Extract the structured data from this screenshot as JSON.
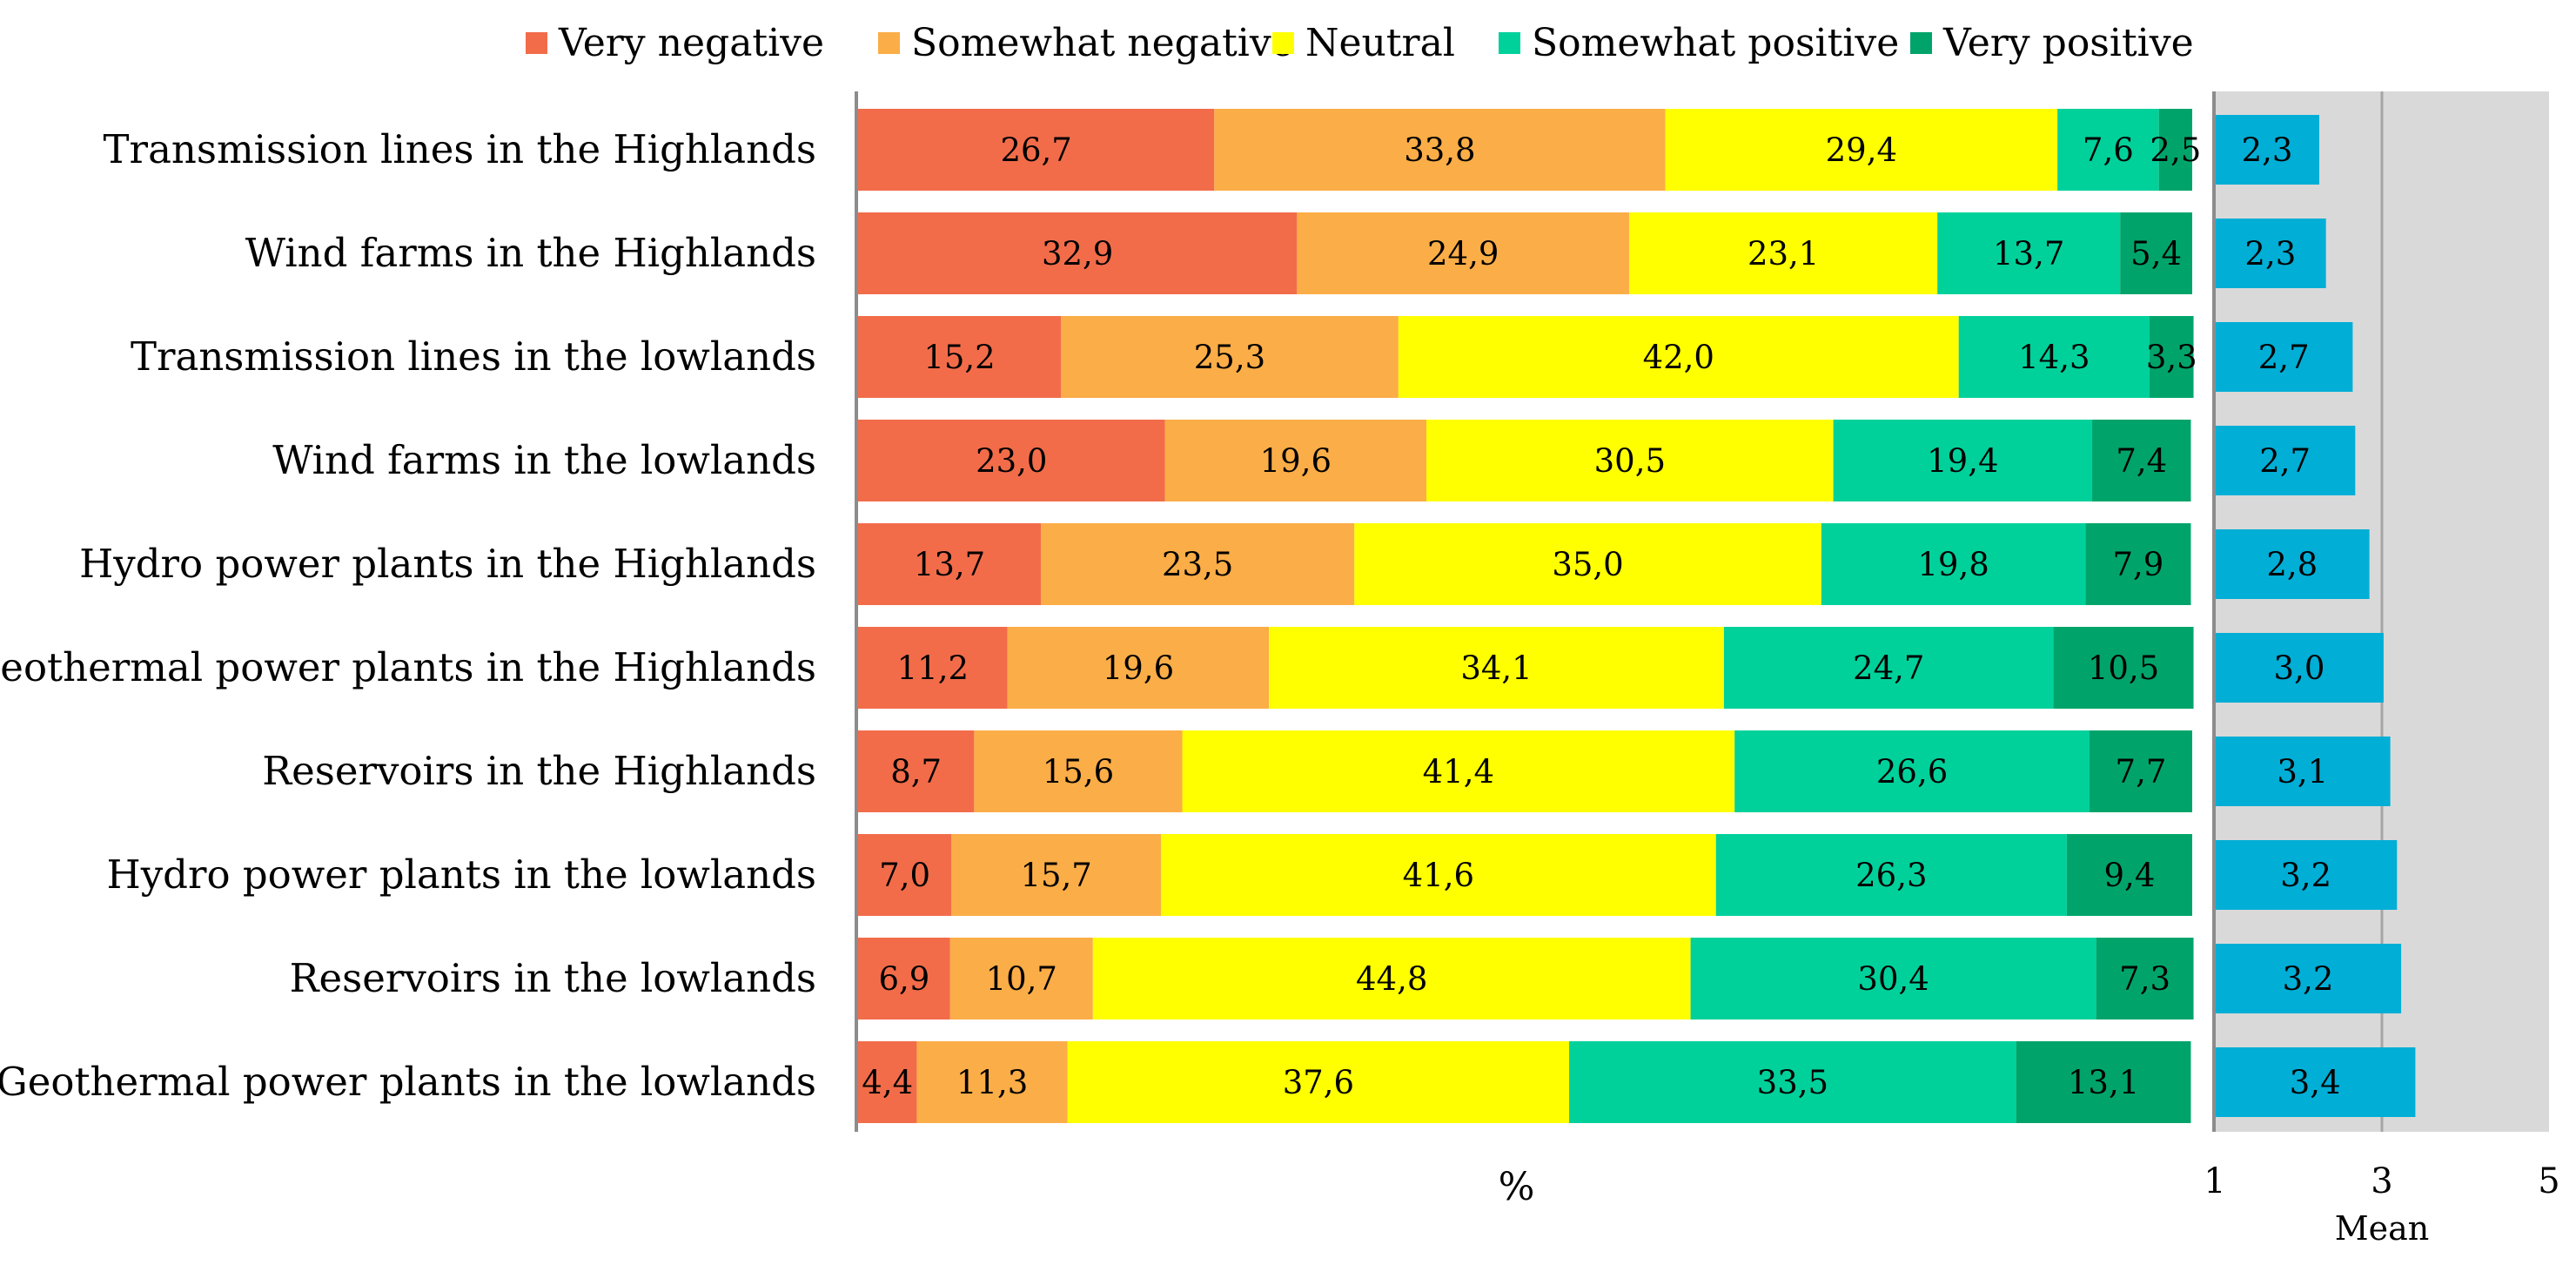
{
  "chart_data": [
    {
      "type": "bar",
      "orientation": "horizontal",
      "stacked": true,
      "xlabel": "%",
      "xlim": [
        0,
        100
      ],
      "categories": [
        "Transmission lines in the Highlands",
        "Wind farms in the Highlands",
        "Transmission lines in the lowlands",
        "Wind farms in the lowlands",
        "Hydro power plants in the Highlands",
        "Geothermal power plants in the Highlands",
        "Reservoirs in the Highlands",
        "Hydro power plants in the lowlands",
        "Reservoirs in the lowlands",
        "Geothermal power plants in the lowlands"
      ],
      "series": [
        {
          "name": "Very negative",
          "color": "#f26c4a",
          "values": [
            26.7,
            32.9,
            15.2,
            23.0,
            13.7,
            11.2,
            8.7,
            7.0,
            6.9,
            4.4
          ],
          "labels": [
            "26,7",
            "32,9",
            "15,2",
            "23,0",
            "13,7",
            "11,2",
            "8,7",
            "7,0",
            "6,9",
            "4,4"
          ]
        },
        {
          "name": "Somewhat negative",
          "color": "#fbad47",
          "values": [
            33.8,
            24.9,
            25.3,
            19.6,
            23.5,
            19.6,
            15.6,
            15.7,
            10.7,
            11.3
          ],
          "labels": [
            "33,8",
            "24,9",
            "25,3",
            "19,6",
            "23,5",
            "19,6",
            "15,6",
            "15,7",
            "10,7",
            "11,3"
          ]
        },
        {
          "name": "Neutral",
          "color": "#ffff00",
          "values": [
            29.4,
            23.1,
            42.0,
            30.5,
            35.0,
            34.1,
            41.4,
            41.6,
            44.8,
            37.6
          ],
          "labels": [
            "29,4",
            "23,1",
            "42,0",
            "30,5",
            "35,0",
            "34,1",
            "41,4",
            "41,6",
            "44,8",
            "37,6"
          ]
        },
        {
          "name": "Somewhat positive",
          "color": "#00d19b",
          "values": [
            7.6,
            13.7,
            14.3,
            19.4,
            19.8,
            24.7,
            26.6,
            26.3,
            30.4,
            33.5
          ],
          "labels": [
            "7,6",
            "13,7",
            "14,3",
            "19,4",
            "19,8",
            "24,7",
            "26,6",
            "26,3",
            "30,4",
            "33,5"
          ]
        },
        {
          "name": "Very positive",
          "color": "#00a46a",
          "values": [
            2.5,
            5.4,
            3.3,
            7.4,
            7.9,
            10.5,
            7.7,
            9.4,
            7.3,
            13.1
          ],
          "labels": [
            "2,5",
            "5,4",
            "3,3",
            "7,4",
            "7,9",
            "10,5",
            "7,7",
            "9,4",
            "7,3",
            "13,1"
          ]
        }
      ],
      "legend": "top"
    },
    {
      "type": "bar",
      "orientation": "horizontal",
      "xlabel": "Mean",
      "xlim": [
        1,
        5
      ],
      "xticks": [
        "1",
        "3",
        "5"
      ],
      "xtick_values": [
        1,
        3,
        5
      ],
      "background": "#d9d9d9",
      "color": "#00aed6",
      "values": [
        2.25,
        2.33,
        2.65,
        2.68,
        2.85,
        3.02,
        3.1,
        3.18,
        3.23,
        3.4
      ],
      "labels": [
        "2,3",
        "2,3",
        "2,7",
        "2,7",
        "2,8",
        "3,0",
        "3,1",
        "3,2",
        "3,2",
        "3,4"
      ]
    }
  ]
}
